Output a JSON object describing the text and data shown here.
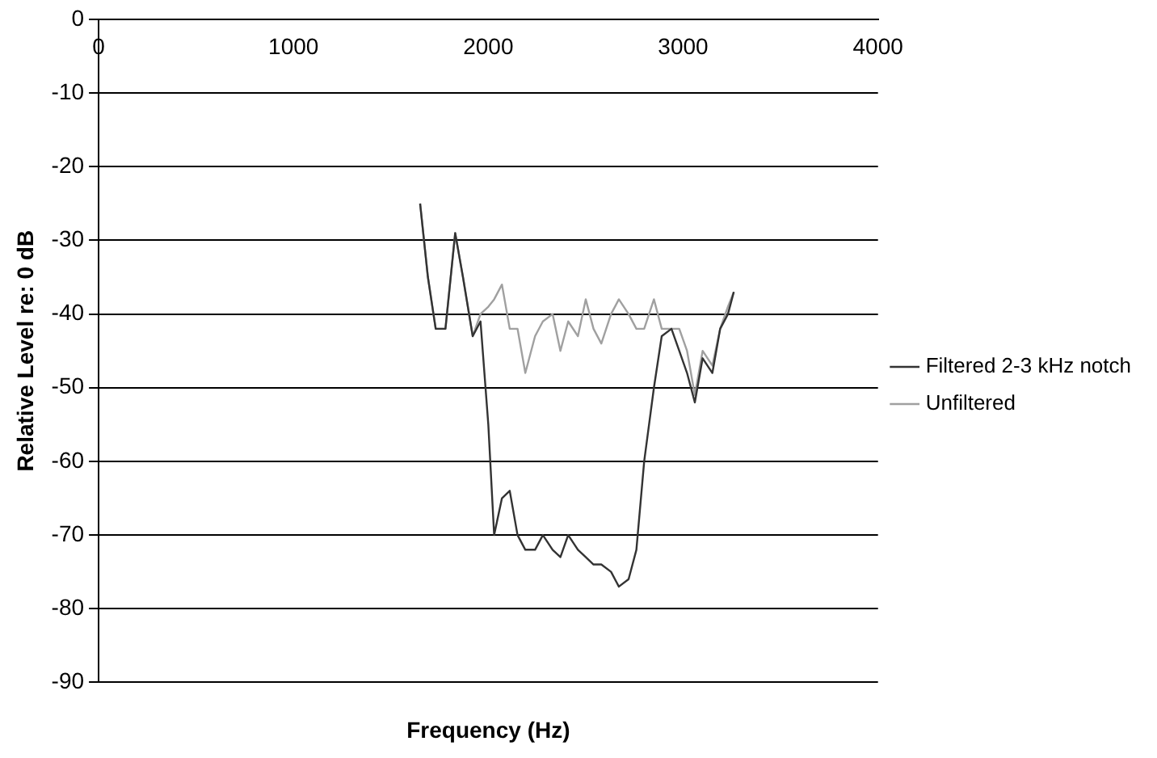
{
  "chart_data": {
    "type": "line",
    "xlabel": "Frequency (Hz)",
    "ylabel": "Relative Level re: 0 dB",
    "xlim": [
      0,
      4000
    ],
    "xticks": [
      0,
      1000,
      2000,
      3000,
      4000
    ],
    "ylim": [
      -90,
      0
    ],
    "yticks": [
      0,
      -10,
      -20,
      -30,
      -40,
      -50,
      -60,
      -70,
      -80,
      -90
    ],
    "grid": "y",
    "legend": "right",
    "marker": "none",
    "line_style": "solid",
    "x": [
      1650,
      1690,
      1730,
      1780,
      1830,
      1870,
      1920,
      1960,
      2000,
      2030,
      2070,
      2110,
      2150,
      2190,
      2240,
      2280,
      2330,
      2370,
      2410,
      2460,
      2500,
      2540,
      2580,
      2630,
      2670,
      2720,
      2760,
      2800,
      2850,
      2890,
      2940,
      2980,
      3020,
      3060,
      3100,
      3150,
      3190,
      3230,
      3260
    ],
    "series": [
      {
        "name": "Filtered 2-3 kHz notch",
        "color": "#333333",
        "values": [
          -25,
          -35,
          -42,
          -42,
          -29,
          -35,
          -43,
          -41,
          -55,
          -70,
          -65,
          -64,
          -70,
          -72,
          -72,
          -70,
          -72,
          -73,
          -70,
          -72,
          -73,
          -74,
          -74,
          -75,
          -77,
          -76,
          -72,
          -60,
          -50,
          -43,
          -42,
          -45,
          -48,
          -52,
          -46,
          -48,
          -42,
          -40,
          -37
        ]
      },
      {
        "name": "Unfiltered",
        "color": "#a0a0a0",
        "values": [
          -25,
          -35,
          -42,
          -42,
          -29,
          -35,
          -43,
          -40,
          -39,
          -38,
          -36,
          -42,
          -42,
          -48,
          -43,
          -41,
          -40,
          -45,
          -41,
          -43,
          -38,
          -42,
          -44,
          -40,
          -38,
          -40,
          -42,
          -42,
          -38,
          -42,
          -42,
          -42,
          -45,
          -51,
          -45,
          -47,
          -42,
          -39,
          -37
        ]
      }
    ]
  }
}
